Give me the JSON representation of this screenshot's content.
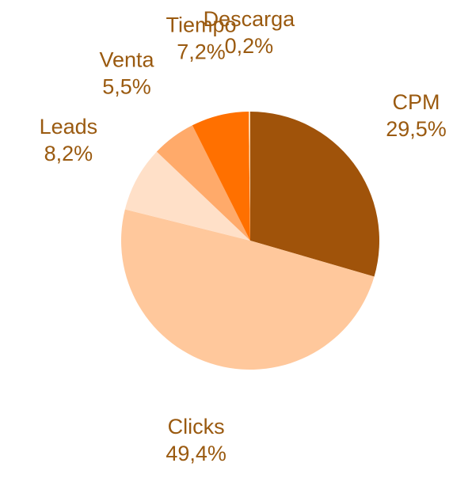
{
  "chart_data": {
    "type": "pie",
    "categories": [
      "CPM",
      "Clicks",
      "Leads",
      "Venta",
      "Tiempo",
      "Descarga"
    ],
    "values": [
      29.5,
      49.4,
      8.2,
      5.5,
      7.2,
      0.2
    ],
    "value_labels": [
      "29,5%",
      "49,4%",
      "8,2%",
      "5,5%",
      "7,2%",
      "0,2%"
    ],
    "colors": [
      "#a0530a",
      "#ffc89c",
      "#ffe0c8",
      "#ffaa6a",
      "#ff7000",
      "#ffd8b0"
    ]
  }
}
